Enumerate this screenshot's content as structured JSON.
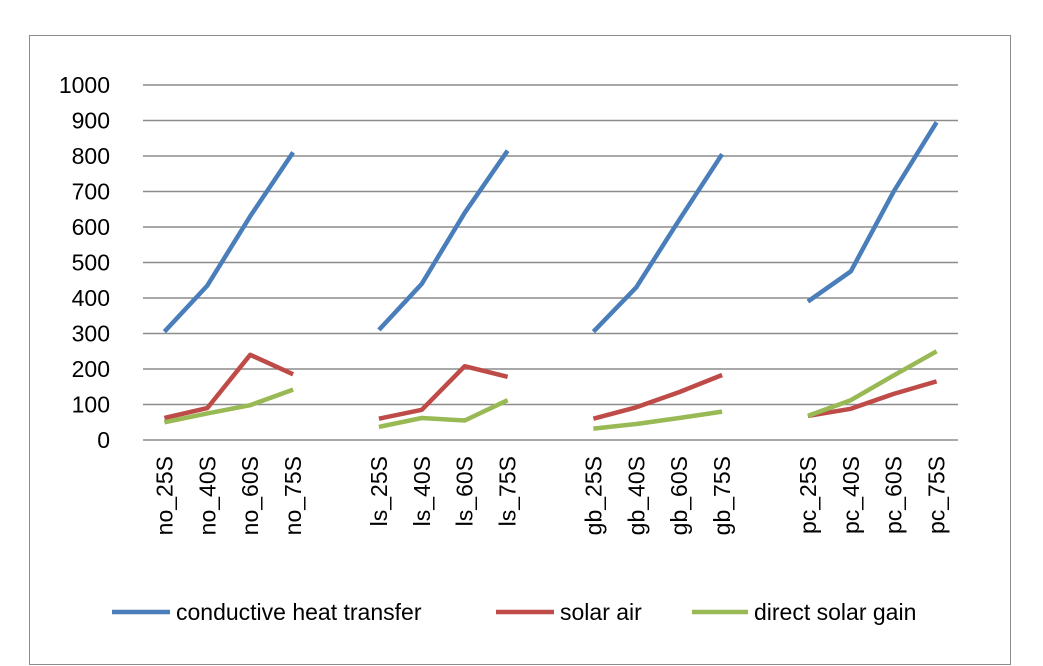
{
  "chart_data": {
    "type": "line",
    "title": "",
    "xlabel": "",
    "ylabel": "",
    "ylim": [
      0,
      1000
    ],
    "yticks": [
      0,
      100,
      200,
      300,
      400,
      500,
      600,
      700,
      800,
      900,
      1000
    ],
    "grid": true,
    "legend_position": "bottom",
    "categories": [
      "no_25S",
      "no_40S",
      "no_60S",
      "no_75S",
      "",
      "ls_25S",
      "ls_40S",
      "ls_60S",
      "ls_75S",
      "",
      "gb_25S",
      "gb_40S",
      "gb_60S",
      "gb_75S",
      "",
      "pc_25S",
      "pc_40S",
      "pc_60S",
      "pc_75S"
    ],
    "series": [
      {
        "name": "conductive heat transfer",
        "color": "#4a7ebb",
        "values": [
          305,
          435,
          630,
          810,
          null,
          310,
          440,
          640,
          815,
          null,
          305,
          430,
          620,
          805,
          null,
          390,
          475,
          700,
          895
        ]
      },
      {
        "name": "solar air",
        "color": "#be4b48",
        "values": [
          62,
          90,
          240,
          185,
          null,
          60,
          85,
          208,
          178,
          null,
          60,
          92,
          135,
          183,
          null,
          68,
          88,
          130,
          165
        ]
      },
      {
        "name": "direct solar gain",
        "color": "#98b954",
        "values": [
          50,
          75,
          98,
          142,
          null,
          37,
          62,
          55,
          112,
          null,
          32,
          45,
          62,
          80,
          null,
          68,
          112,
          182,
          250
        ]
      }
    ]
  }
}
